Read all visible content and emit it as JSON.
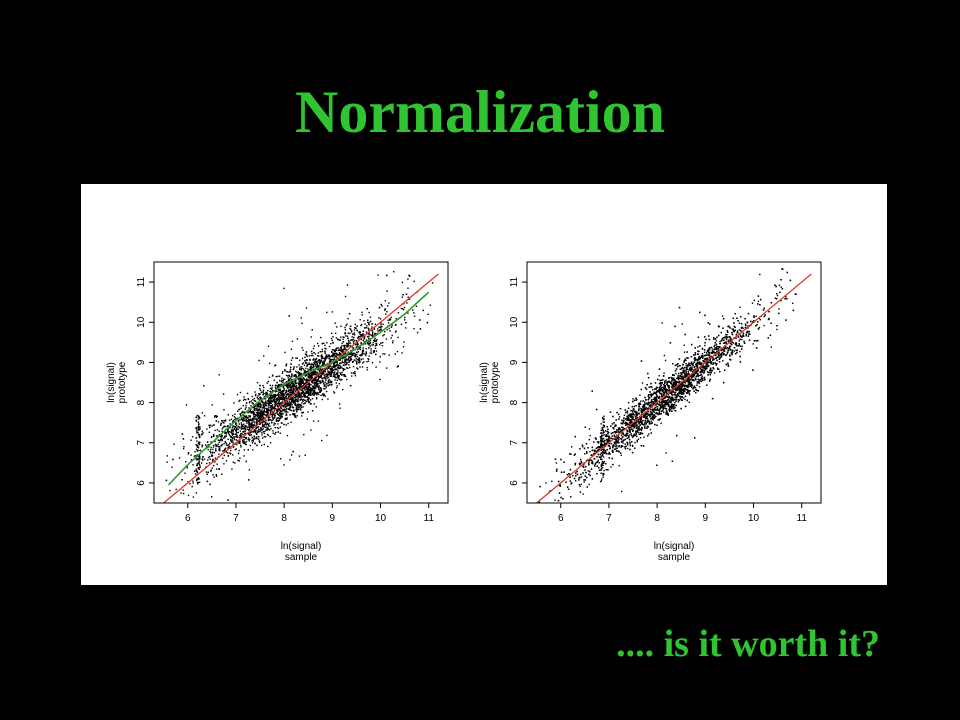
{
  "slide": {
    "title": "Normalization",
    "caption": ".... is it worth it?"
  },
  "colors": {
    "background": "#000000",
    "heading": "#31c431",
    "points": "#000000",
    "identity_line": "#d83a2a",
    "fit_curve": "#2f9e2f"
  },
  "chart_data": [
    {
      "type": "scatter",
      "xlabel": [
        "ln(signal)",
        "sample"
      ],
      "ylabel": [
        "ln(signal)",
        "prototype"
      ],
      "xlim": [
        5.3,
        11.4
      ],
      "ylim": [
        5.5,
        11.5
      ],
      "xticks": [
        6,
        7,
        8,
        9,
        10,
        11
      ],
      "yticks": [
        6,
        7,
        8,
        9,
        10,
        11
      ],
      "grid": false,
      "cloud": {
        "x_range": [
          5.5,
          11.1
        ],
        "slope": 0.83,
        "intercept_at_x9": 8.95,
        "spread": 0.3
      },
      "identity_line": {
        "x": [
          5.5,
          11.2
        ],
        "y": [
          5.5,
          11.2
        ]
      },
      "fit_curve": {
        "x": [
          5.6,
          6.0,
          6.5,
          7.0,
          7.5,
          8.0,
          8.5,
          9.0,
          9.5,
          10.0,
          10.5,
          11.0
        ],
        "y": [
          5.95,
          6.45,
          7.0,
          7.55,
          8.05,
          8.45,
          8.75,
          9.0,
          9.35,
          9.75,
          10.2,
          10.75
        ]
      }
    },
    {
      "type": "scatter",
      "xlabel": [
        "ln(signal)",
        "sample"
      ],
      "ylabel": [
        "ln(signal)",
        "prototype"
      ],
      "xlim": [
        5.3,
        11.4
      ],
      "ylim": [
        5.5,
        11.5
      ],
      "xticks": [
        6,
        7,
        8,
        9,
        10,
        11
      ],
      "yticks": [
        6,
        7,
        8,
        9,
        10,
        11
      ],
      "grid": false,
      "cloud": {
        "x_range": [
          5.5,
          10.9
        ],
        "slope": 1.0,
        "intercept_at_x9": 9.0,
        "spread": 0.25
      },
      "identity_line": {
        "x": [
          5.5,
          11.2
        ],
        "y": [
          5.5,
          11.2
        ]
      }
    }
  ]
}
